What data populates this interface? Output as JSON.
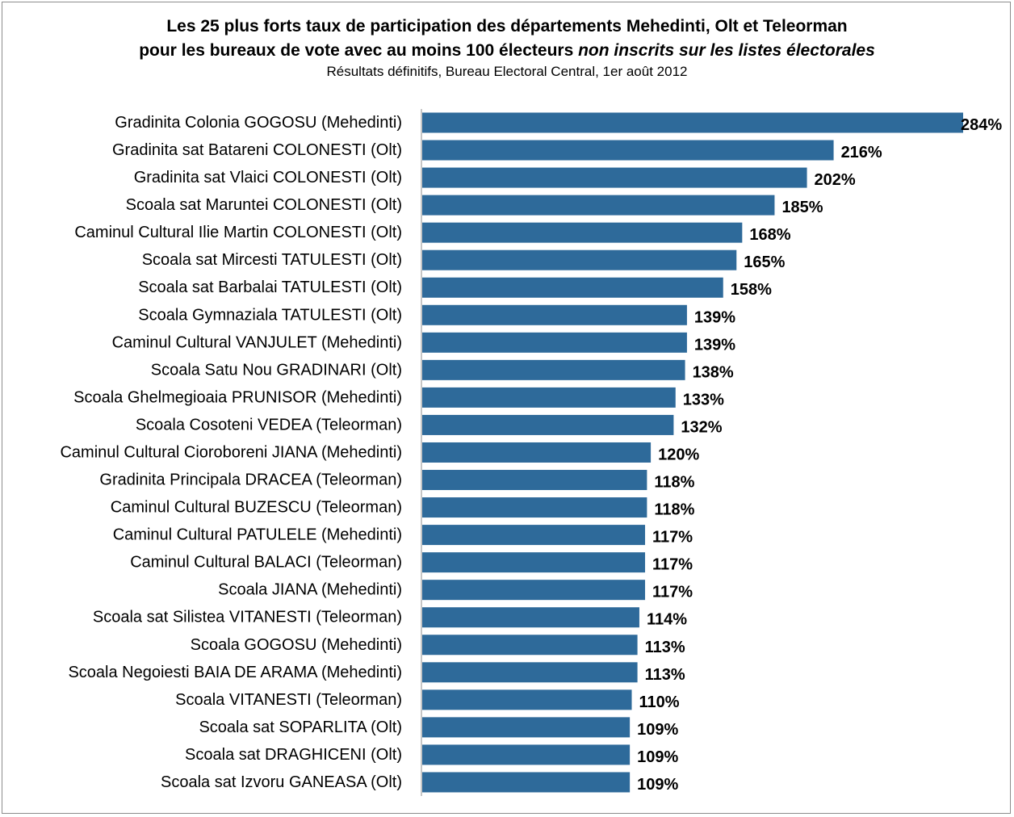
{
  "chart_data": {
    "type": "bar",
    "orientation": "horizontal",
    "title_line1": "Les 25 plus forts taux de participation des départements Mehedinti, Olt et Teleorman",
    "title_line2_regular": "pour les bureaux de vote avec au moins 100 électeurs ",
    "title_line2_italic": "non inscrits sur les listes électorales",
    "subtitle": "Résultats définitifs, Bureau Electoral Central, 1er août 2012",
    "bar_color": "#2e6a9a",
    "value_suffix": "%",
    "xlim": [
      0,
      284
    ],
    "grid": false,
    "categories": [
      "Gradinita Colonia GOGOSU (Mehedinti)",
      "Gradinita sat  Batareni COLONESTI (Olt)",
      "Gradinita sat Vlaici COLONESTI (Olt)",
      "Scoala sat Maruntei COLONESTI (Olt)",
      "Caminul Cultural Ilie Martin COLONESTI (Olt)",
      "Scoala sat Mircesti TATULESTI (Olt)",
      "Scoala sat Barbalai  TATULESTI (Olt)",
      "Scoala Gymnaziala  TATULESTI (Olt)",
      "Caminul Cultural VANJULET (Mehedinti)",
      "Scoala Satu Nou GRADINARI (Olt)",
      "Scoala Ghelmegioaia PRUNISOR (Mehedinti)",
      "Scoala Cosoteni VEDEA (Teleorman)",
      "Caminul Cultural Cioroboreni JIANA (Mehedinti)",
      "Gradinita Principala DRACEA (Teleorman)",
      "Caminul Cultural BUZESCU (Teleorman)",
      "Caminul Cultural PATULELE (Mehedinti)",
      "Caminul Cultural BALACI (Teleorman)",
      "Scoala JIANA (Mehedinti)",
      "Scoala sat Silistea VITANESTI (Teleorman)",
      "Scoala GOGOSU (Mehedinti)",
      "Scoala Negoiesti BAIA DE ARAMA (Mehedinti)",
      "Scoala VITANESTI (Teleorman)",
      "Scoala sat SOPARLITA (Olt)",
      "Scoala sat DRAGHICENI (Olt)",
      "Scoala sat Izvoru GANEASA (Olt)"
    ],
    "values": [
      284,
      216,
      202,
      185,
      168,
      165,
      158,
      139,
      139,
      138,
      133,
      132,
      120,
      118,
      118,
      117,
      117,
      117,
      114,
      113,
      113,
      110,
      109,
      109,
      109
    ]
  }
}
